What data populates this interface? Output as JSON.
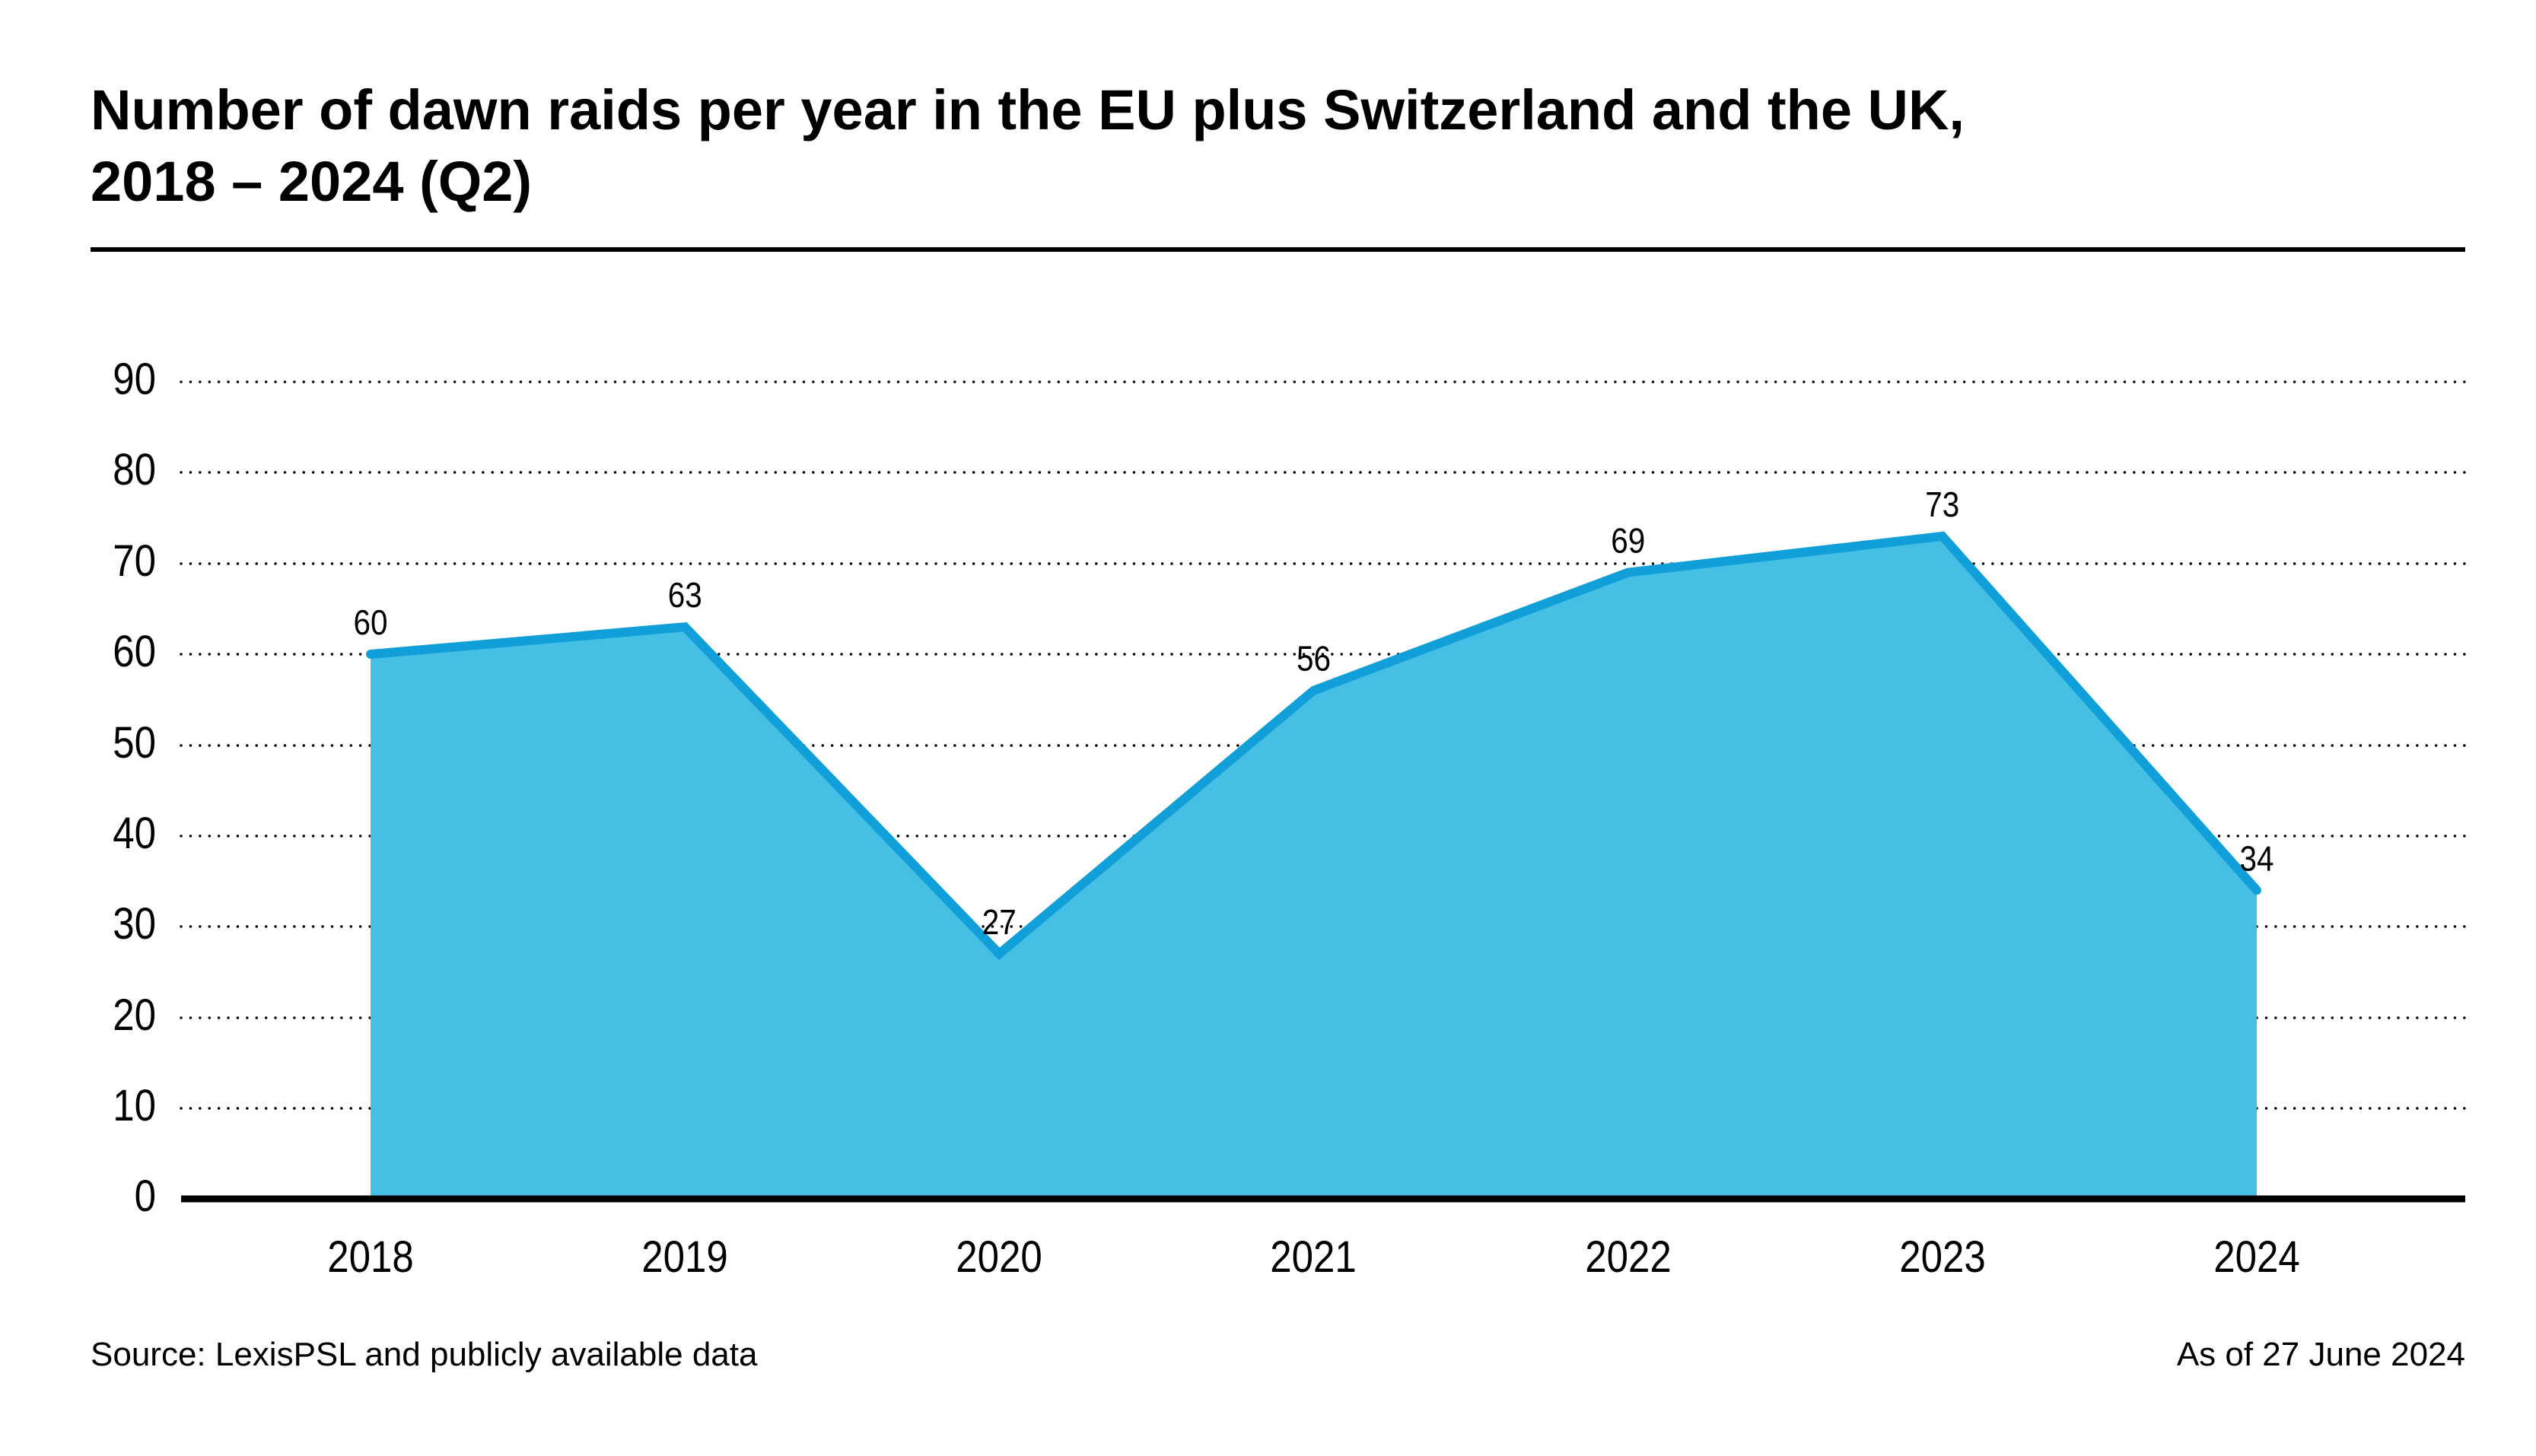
{
  "title": {
    "line1": "Number of dawn raids per year in the EU plus Switzerland and the UK,",
    "line2": "2018 – 2024 (Q2)"
  },
  "y_axis": {
    "ticks": [
      "90",
      "80",
      "70",
      "60",
      "50",
      "40",
      "30",
      "20",
      "10",
      "0"
    ]
  },
  "x_axis": {
    "labels": [
      "2018",
      "2019",
      "2020",
      "2021",
      "2022",
      "2023",
      "2024"
    ]
  },
  "footer": {
    "source": "Source: LexisPSL and publicly available data",
    "as_of": "As of 27 June 2024"
  },
  "chart_data": {
    "type": "area",
    "categories": [
      "2018",
      "2019",
      "2020",
      "2021",
      "2022",
      "2023",
      "2024"
    ],
    "values": [
      60,
      63,
      27,
      56,
      69,
      73,
      34
    ],
    "title": "Number of dawn raids per year in the EU plus Switzerland and the UK, 2018 – 2024 (Q2)",
    "xlabel": "",
    "ylabel": "",
    "ylim": [
      0,
      90
    ],
    "ytick_step": 10,
    "grid": "horizontal-dotted",
    "legend": "none",
    "colors": {
      "area_fill": "#46BFE4",
      "line_stroke": "#119FD9",
      "text": "#000000",
      "background": "#FFFFFF"
    }
  }
}
